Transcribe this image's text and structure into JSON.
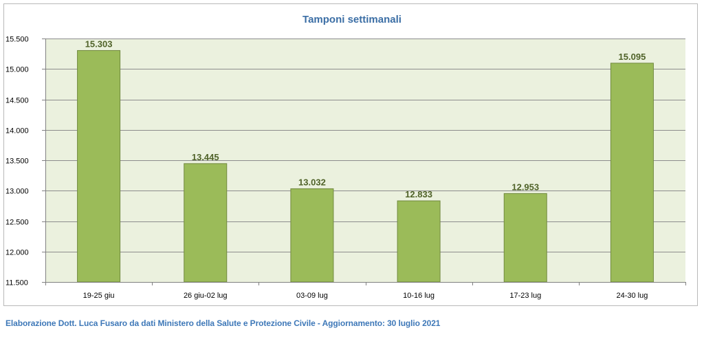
{
  "chart_data": {
    "type": "bar",
    "title": "Tamponi settimanali",
    "xlabel": "",
    "ylabel": "",
    "categories": [
      "19-25 giu",
      "26 giu-02 lug",
      "03-09 lug",
      "10-16 lug",
      "17-23 lug",
      "24-30 lug"
    ],
    "values": [
      15303,
      13445,
      13032,
      12833,
      12953,
      15095
    ],
    "value_labels": [
      "15.303",
      "13.445",
      "13.032",
      "12.833",
      "12.953",
      "15.095"
    ],
    "ylim": [
      11500,
      15500
    ],
    "yticks": [
      11500,
      12000,
      12500,
      13000,
      13500,
      14000,
      14500,
      15000,
      15500
    ],
    "ytick_labels": [
      "11.500",
      "12.000",
      "12.500",
      "13.000",
      "13.500",
      "14.000",
      "14.500",
      "15.000",
      "15.500"
    ],
    "grid": true,
    "colors": {
      "bar_fill": "#9bbb59",
      "bar_stroke": "#71893f",
      "plot_bg": "#ebf1de",
      "title": "#3b6ea5",
      "value_label": "#4f6228"
    }
  },
  "footer": {
    "credit": "Elaborazione Dott. Luca Fusaro da dati Ministero della Salute e Protezione Civile - Aggiornamento: 30 luglio 2021"
  }
}
